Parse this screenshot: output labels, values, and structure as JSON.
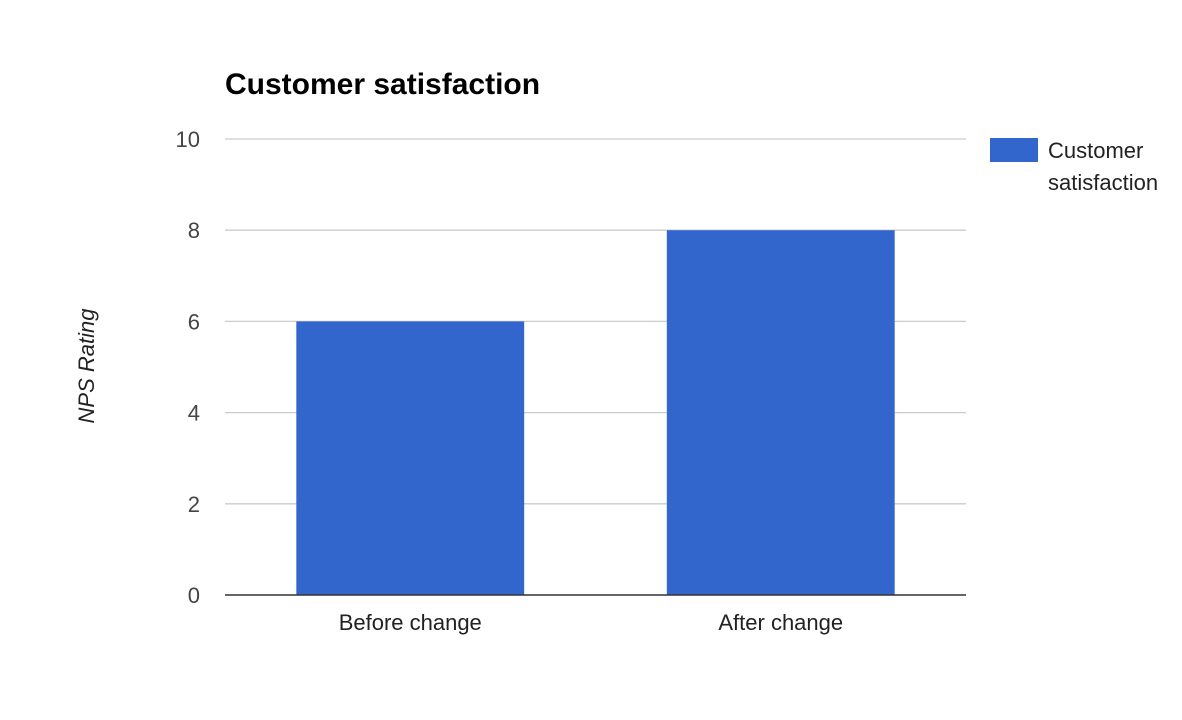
{
  "chart_data": {
    "type": "bar",
    "title": "Customer satisfaction",
    "xlabel": "",
    "ylabel": "NPS Rating",
    "categories": [
      "Before change",
      "After change"
    ],
    "series": [
      {
        "name": "Customer satisfaction",
        "values": [
          6,
          8
        ]
      }
    ],
    "ylim": [
      0,
      10
    ],
    "yticks": [
      0,
      2,
      4,
      6,
      8,
      10
    ],
    "grid": true,
    "legend": {
      "position": "right",
      "lines": [
        "Customer",
        "satisfaction"
      ]
    },
    "colors": {
      "series": "#3366cc",
      "grid": "#cccccc",
      "axis": "#333333"
    }
  }
}
